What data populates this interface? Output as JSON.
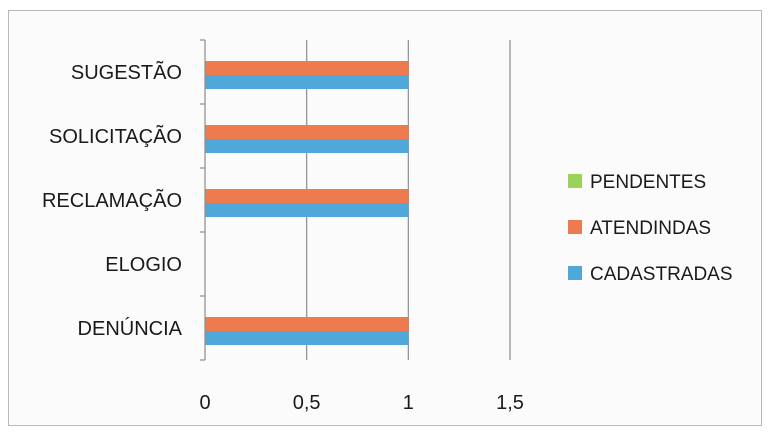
{
  "chart_data": {
    "type": "bar",
    "orientation": "horizontal",
    "categories": [
      "SUGESTÃO",
      "SOLICITAÇÃO",
      "RECLAMAÇÃO",
      "ELOGIO",
      "DENÚNCIA"
    ],
    "series": [
      {
        "name": "PENDENTES",
        "color": "#9bd35a",
        "values": [
          0,
          0,
          0,
          0,
          0
        ]
      },
      {
        "name": "ATENDINDAS",
        "color": "#ee7b4f",
        "values": [
          1,
          1,
          1,
          0,
          1
        ]
      },
      {
        "name": "CADASTRADAS",
        "color": "#4fa8d8",
        "values": [
          1,
          1,
          1,
          0,
          1
        ]
      }
    ],
    "xlim": [
      0,
      1.5
    ],
    "xticks": [
      "0",
      "0,5",
      "1",
      "1,5"
    ],
    "grid": true,
    "legend_position": "right"
  }
}
